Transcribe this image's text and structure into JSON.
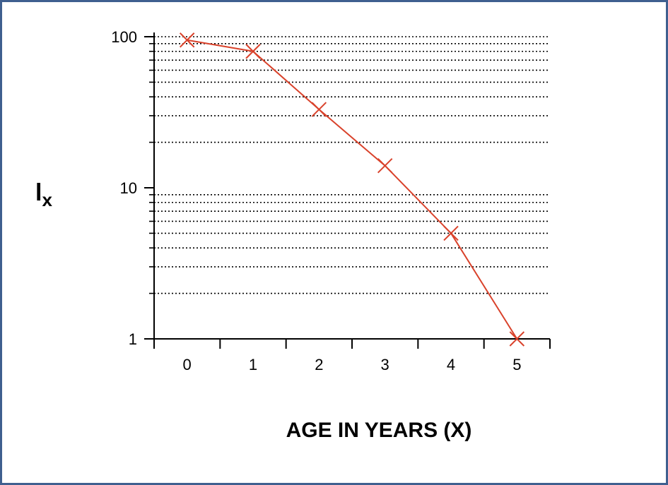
{
  "chart_data": {
    "type": "line",
    "title": "",
    "xlabel": "AGE IN YEARS (X)",
    "ylabel_main": "l",
    "ylabel_sub": "x",
    "x": [
      0,
      1,
      2,
      3,
      4,
      5
    ],
    "series": [
      {
        "values": [
          95,
          80,
          33,
          14,
          5,
          1
        ]
      }
    ],
    "xlim": [
      -0.5,
      5.5
    ],
    "ylim": [
      1,
      100
    ],
    "yscale": "log",
    "x_ticks": [
      "0",
      "1",
      "2",
      "3",
      "4",
      "5"
    ],
    "y_ticks": [
      "1",
      "10",
      "100"
    ],
    "grid": "horizontal dotted at 2–9 and 20–100",
    "legend": "none",
    "colors": {
      "series": "#d9422b",
      "frame": "#3f5f8f",
      "axis": "#000000"
    }
  }
}
